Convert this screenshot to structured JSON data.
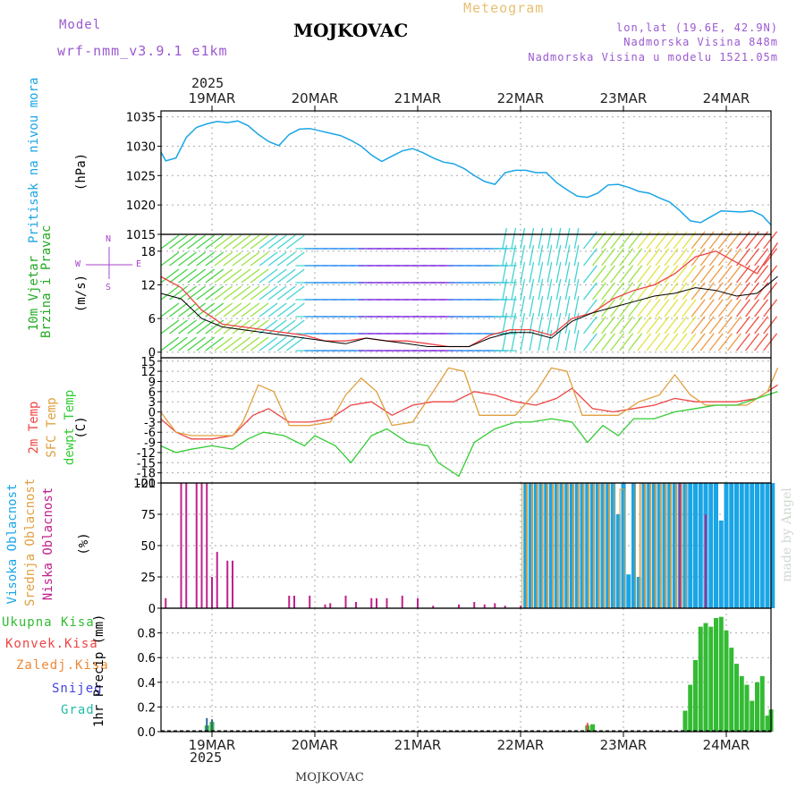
{
  "header": {
    "model_label": "Model",
    "model_value": "wrf-nmm_v3.9.1 e1km",
    "title": "MOJKOVAC",
    "meteogram": "Meteogram",
    "lonlat": "lon,lat (19.6E, 42.9N)",
    "elevation": "Nadmorska Visina 848m",
    "model_elevation": "Nadmorska Visina u modelu 1521.05m",
    "year_top": "2025",
    "year_bottom": "2025",
    "footer": "MOJKOVAC",
    "credit": "made by Angel"
  },
  "colors": {
    "pressure": "#1aa5e6",
    "wind_label": "#22aa22",
    "wind_dir": "#aa44cc",
    "temp": "#ee4444",
    "sfc": "#e0a040",
    "dew": "#33cc33",
    "high_cloud": "#1aa5e6",
    "mid_cloud": "#e0a040",
    "low_cloud": "#c0208a",
    "total_precip": "#33bb33",
    "conv_precip": "#ee4444",
    "frz_precip": "#ee8833",
    "snow": "#4444dd",
    "hail": "#22bbaa",
    "header_purple": "#9b59d0",
    "meteogram_orange": "#e8c070"
  },
  "panel_labels": {
    "pressure": [
      "Pritisak na nivou mora",
      "(hPa)"
    ],
    "wind": [
      "10m Vjetar",
      "Brzina i Pravac",
      "(m/s)"
    ],
    "wind_dir": [
      "N",
      "W",
      "E",
      "S"
    ],
    "temp": [
      "2m Temp",
      "SFC Temp",
      "dewpt Temp",
      "(C)"
    ],
    "cloud": [
      "Visoka Oblacnost",
      "Srednja Oblacnost",
      "Niska Oblacnost",
      "(%)"
    ],
    "precip": [
      "Ukupna Kisa",
      "Konvek.Kisa",
      "Zaledj.Kisa",
      "Snijeg",
      "Grad",
      "1hr Precip (mm)"
    ]
  },
  "chart_data": [
    {
      "type": "line",
      "name": "pressure",
      "categories": [
        "19MAR",
        "20MAR",
        "21MAR",
        "22MAR",
        "23MAR",
        "24MAR"
      ],
      "ylabel": "(hPa)",
      "ylim": [
        1015,
        1036
      ],
      "yticks": [
        1015,
        1020,
        1025,
        1030,
        1035
      ],
      "series": [
        {
          "name": "Pritisak na nivou mora",
          "x": [
            -0.5,
            -0.45,
            -0.35,
            -0.25,
            -0.15,
            -0.05,
            0.05,
            0.15,
            0.25,
            0.35,
            0.45,
            0.55,
            0.65,
            0.75,
            0.85,
            0.95,
            1.05,
            1.15,
            1.25,
            1.35,
            1.45,
            1.55,
            1.65,
            1.75,
            1.85,
            1.95,
            2.05,
            2.15,
            2.25,
            2.35,
            2.45,
            2.55,
            2.65,
            2.75,
            2.85,
            2.95,
            3.05,
            3.15,
            3.25,
            3.35,
            3.45,
            3.55,
            3.65,
            3.75,
            3.85,
            3.95,
            4.05,
            4.15,
            4.25,
            4.35,
            4.45,
            4.55,
            4.65,
            4.75,
            4.85,
            4.95,
            5.05,
            5.15,
            5.25,
            5.35,
            5.5
          ],
          "values": [
            1029.0,
            1027.5,
            1028.0,
            1031.5,
            1033.2,
            1033.8,
            1034.2,
            1034.0,
            1034.3,
            1033.5,
            1032.0,
            1030.8,
            1030.1,
            1032.0,
            1032.9,
            1033.0,
            1032.6,
            1032.2,
            1031.8,
            1031.0,
            1030.0,
            1028.5,
            1027.4,
            1028.3,
            1029.2,
            1029.6,
            1028.9,
            1028.0,
            1027.3,
            1027.0,
            1026.2,
            1025.0,
            1024.0,
            1023.5,
            1025.5,
            1025.9,
            1025.9,
            1025.5,
            1025.5,
            1023.8,
            1022.6,
            1021.5,
            1021.3,
            1022.0,
            1023.4,
            1023.5,
            1023.0,
            1022.3,
            1022.0,
            1021.2,
            1020.5,
            1019.0,
            1017.3,
            1017.0,
            1018.0,
            1019.0,
            1018.9,
            1018.8,
            1019.0,
            1018.2,
            1016.6
          ]
        }
      ]
    },
    {
      "type": "line",
      "name": "wind",
      "categories": [
        "19MAR",
        "20MAR",
        "21MAR",
        "22MAR",
        "23MAR",
        "24MAR"
      ],
      "ylabel": "(m/s)",
      "ylim": [
        -1,
        21
      ],
      "yticks": [
        0,
        6,
        12,
        18
      ],
      "series": [
        {
          "name": "gust",
          "x": [
            -0.5,
            -0.3,
            -0.1,
            0.1,
            0.3,
            0.5,
            0.7,
            0.9,
            1.1,
            1.3,
            1.5,
            1.7,
            1.9,
            2.1,
            2.3,
            2.5,
            2.7,
            2.9,
            3.1,
            3.3,
            3.5,
            3.7,
            3.9,
            4.1,
            4.3,
            4.5,
            4.7,
            4.9,
            5.1,
            5.3,
            5.5
          ],
          "values": [
            13.5,
            11.5,
            7.5,
            5.0,
            4.5,
            4.0,
            3.5,
            3.0,
            2.0,
            2.0,
            2.5,
            2.0,
            2.0,
            1.5,
            1.0,
            1.0,
            3.0,
            4.0,
            4.0,
            3.0,
            6.0,
            7.0,
            9.5,
            11.0,
            12.0,
            14.0,
            17.0,
            18.0,
            16.0,
            14.0,
            19.5
          ]
        },
        {
          "name": "speed",
          "x": [
            -0.5,
            -0.3,
            -0.1,
            0.1,
            0.3,
            0.5,
            0.7,
            0.9,
            1.1,
            1.3,
            1.5,
            1.7,
            1.9,
            2.1,
            2.3,
            2.5,
            2.7,
            2.9,
            3.1,
            3.3,
            3.5,
            3.7,
            3.9,
            4.1,
            4.3,
            4.5,
            4.7,
            4.9,
            5.1,
            5.3,
            5.5
          ],
          "values": [
            10.5,
            9.5,
            6.0,
            4.5,
            4.0,
            3.5,
            3.0,
            2.5,
            2.0,
            1.5,
            2.5,
            2.0,
            1.5,
            1.0,
            1.0,
            1.0,
            2.5,
            3.5,
            3.5,
            2.5,
            5.5,
            7.0,
            8.0,
            9.0,
            10.0,
            10.5,
            11.5,
            11.0,
            10.0,
            10.5,
            13.5
          ]
        }
      ]
    },
    {
      "type": "line",
      "name": "temperature",
      "categories": [
        "19MAR",
        "20MAR",
        "21MAR",
        "22MAR",
        "23MAR",
        "24MAR"
      ],
      "ylabel": "(C)",
      "ylim": [
        -21,
        16
      ],
      "yticks": [
        -21,
        -18,
        -15,
        -12,
        -9,
        -6,
        -3,
        0,
        3,
        6,
        9,
        12,
        15
      ],
      "series": [
        {
          "name": "2m Temp",
          "x": [
            -0.5,
            -0.35,
            -0.2,
            0.0,
            0.2,
            0.4,
            0.55,
            0.75,
            0.95,
            1.15,
            1.35,
            1.55,
            1.75,
            1.95,
            2.15,
            2.35,
            2.55,
            2.75,
            2.95,
            3.15,
            3.35,
            3.5,
            3.7,
            3.9,
            4.1,
            4.3,
            4.5,
            4.7,
            4.9,
            5.1,
            5.3,
            5.5
          ],
          "values": [
            -2,
            -6,
            -8,
            -8,
            -7,
            -1,
            1,
            -3,
            -3,
            -2,
            2,
            3,
            -1,
            2,
            3,
            3,
            6,
            5,
            3,
            2,
            4,
            7,
            1,
            0,
            1,
            2,
            4,
            3,
            3,
            3,
            4,
            8
          ]
        },
        {
          "name": "SFC Temp",
          "x": [
            -0.5,
            -0.35,
            -0.2,
            0.0,
            0.2,
            0.3,
            0.45,
            0.6,
            0.75,
            0.95,
            1.15,
            1.3,
            1.45,
            1.6,
            1.75,
            1.95,
            2.15,
            2.3,
            2.45,
            2.6,
            2.75,
            2.95,
            3.15,
            3.3,
            3.45,
            3.6,
            3.75,
            3.95,
            4.15,
            4.35,
            4.5,
            4.65,
            4.8,
            5.0,
            5.2,
            5.4,
            5.5
          ],
          "values": [
            0,
            -6,
            -7,
            -7,
            -7,
            -3,
            8,
            6,
            -4,
            -4,
            -3,
            5,
            10,
            6,
            -4,
            -3,
            6,
            13,
            12,
            -1,
            -1,
            -1,
            6,
            13,
            12,
            -1,
            -1,
            -1,
            3,
            5,
            11,
            5,
            2,
            2,
            2,
            6,
            13
          ]
        },
        {
          "name": "dewpt Temp",
          "x": [
            -0.5,
            -0.35,
            -0.2,
            0.0,
            0.2,
            0.35,
            0.5,
            0.7,
            0.9,
            1.0,
            1.2,
            1.35,
            1.55,
            1.7,
            1.9,
            2.1,
            2.2,
            2.4,
            2.55,
            2.75,
            2.95,
            3.1,
            3.3,
            3.5,
            3.65,
            3.8,
            3.95,
            4.1,
            4.3,
            4.5,
            4.7,
            4.9,
            5.1,
            5.3,
            5.5
          ],
          "values": [
            -10,
            -12,
            -11,
            -10,
            -11,
            -8,
            -6,
            -7,
            -10,
            -7,
            -10,
            -15,
            -7,
            -5,
            -9,
            -10,
            -15,
            -19,
            -9,
            -5,
            -3,
            -3,
            -2,
            -3,
            -9,
            -4,
            -7,
            -2,
            -2,
            0,
            1,
            2,
            2,
            4,
            6
          ]
        }
      ]
    },
    {
      "type": "bar",
      "name": "cloud_cover",
      "categories": [
        "19MAR",
        "20MAR",
        "21MAR",
        "22MAR",
        "23MAR",
        "24MAR"
      ],
      "ylabel": "(%)",
      "ylim": [
        0,
        100
      ],
      "yticks": [
        0,
        25,
        50,
        75,
        100
      ],
      "series": [
        {
          "name": "Niska Oblacnost",
          "x": [
            -0.45,
            -0.3,
            -0.25,
            -0.15,
            -0.1,
            -0.05,
            0.0,
            0.05,
            0.15,
            0.2,
            0.75,
            0.8,
            0.95,
            1.1,
            1.15,
            1.3,
            1.4,
            1.55,
            1.6,
            1.7,
            1.85,
            2.0,
            2.15,
            2.4,
            2.55,
            2.65,
            2.75,
            2.85,
            3.0,
            4.55,
            4.8
          ],
          "values": [
            8,
            100,
            100,
            100,
            100,
            100,
            25,
            45,
            38,
            38,
            10,
            10,
            10,
            3,
            4,
            10,
            5,
            8,
            8,
            8,
            10,
            8,
            2,
            3,
            5,
            3,
            4,
            2,
            2,
            100,
            75
          ]
        },
        {
          "name": "Srednja Oblacnost",
          "x": [
            3.05,
            3.1,
            3.15,
            3.2,
            3.25,
            3.3,
            3.35,
            3.4,
            3.45,
            3.5,
            3.55,
            3.6,
            3.65,
            3.7,
            3.75,
            3.8,
            3.85,
            3.9,
            4.0,
            4.15,
            4.2,
            4.25,
            4.3,
            4.35,
            4.4,
            4.45,
            4.5,
            4.55,
            4.6
          ],
          "values": [
            100,
            100,
            100,
            100,
            100,
            100,
            100,
            100,
            100,
            100,
            100,
            100,
            100,
            100,
            100,
            100,
            100,
            100,
            95,
            100,
            100,
            100,
            100,
            100,
            100,
            100,
            100,
            100,
            100
          ]
        },
        {
          "name": "Visoka Oblacnost",
          "x": [
            3.05,
            3.1,
            3.15,
            3.2,
            3.25,
            3.3,
            3.35,
            3.4,
            3.45,
            3.5,
            3.55,
            3.6,
            3.65,
            3.7,
            3.75,
            3.8,
            3.85,
            3.9,
            3.95,
            4.0,
            4.05,
            4.1,
            4.15,
            4.2,
            4.25,
            4.3,
            4.35,
            4.4,
            4.45,
            4.5,
            4.55,
            4.6,
            4.65,
            4.7,
            4.75,
            4.8,
            4.85,
            4.9,
            4.95,
            5.0,
            5.05,
            5.1,
            5.15,
            5.2,
            5.25,
            5.3,
            5.35,
            5.4,
            5.45
          ],
          "values": [
            100,
            100,
            100,
            100,
            100,
            100,
            100,
            100,
            100,
            100,
            100,
            100,
            100,
            100,
            100,
            100,
            100,
            100,
            75,
            100,
            27,
            100,
            25,
            100,
            100,
            100,
            100,
            100,
            100,
            100,
            100,
            100,
            100,
            100,
            100,
            100,
            100,
            100,
            70,
            100,
            100,
            100,
            100,
            100,
            100,
            100,
            100,
            100,
            100
          ]
        }
      ]
    },
    {
      "type": "bar",
      "name": "precipitation",
      "categories": [
        "19MAR",
        "20MAR",
        "21MAR",
        "22MAR",
        "23MAR",
        "24MAR"
      ],
      "ylabel": "1hr Precip (mm)",
      "ylim": [
        0,
        1
      ],
      "yticks": [
        0,
        0.2,
        0.4,
        0.6,
        0.8
      ],
      "series": [
        {
          "name": "Ukupna Kisa",
          "x": [
            -0.05,
            0.0,
            3.65,
            3.7,
            4.6,
            4.65,
            4.7,
            4.75,
            4.8,
            4.85,
            4.9,
            4.95,
            5.0,
            5.05,
            5.1,
            5.15,
            5.2,
            5.25,
            5.3,
            5.35,
            5.4,
            5.45,
            5.5
          ],
          "values": [
            0.05,
            0.08,
            0.05,
            0.06,
            0.17,
            0.38,
            0.58,
            0.85,
            0.88,
            0.85,
            0.92,
            0.93,
            0.82,
            0.68,
            0.55,
            0.45,
            0.38,
            0.25,
            0.4,
            0.45,
            0.13,
            0.15,
            0.18
          ]
        },
        {
          "name": "Konvek.Kisa",
          "x": [
            3.65
          ],
          "values": [
            0.07
          ]
        },
        {
          "name": "Grad",
          "x": [
            -0.05,
            0.0
          ],
          "values": [
            0.11,
            0.1
          ]
        }
      ]
    }
  ]
}
